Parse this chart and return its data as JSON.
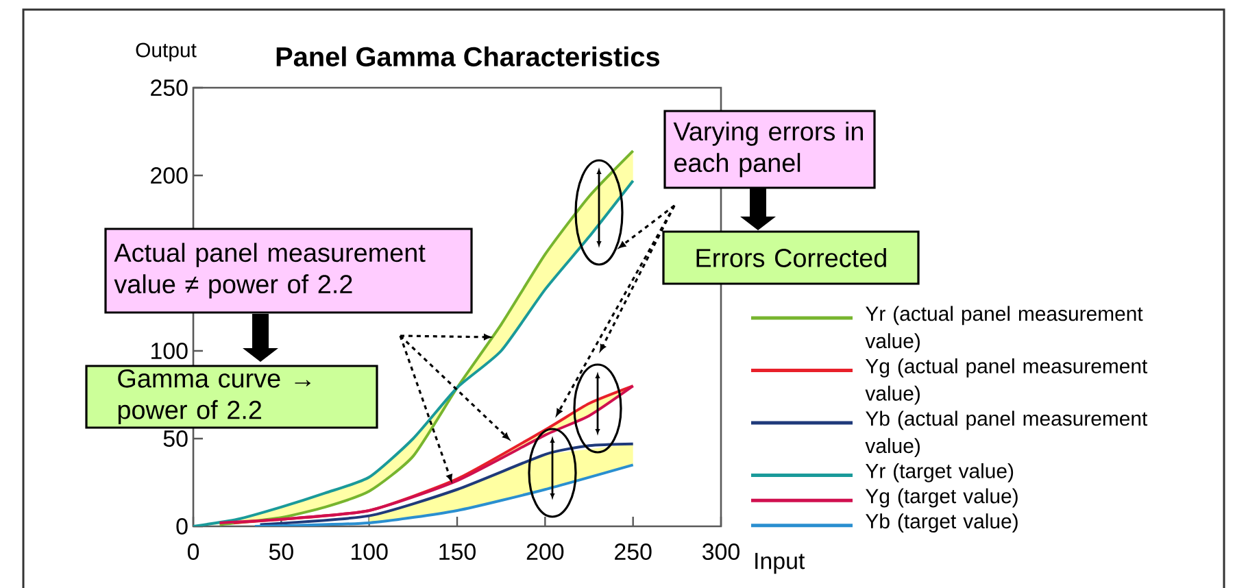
{
  "chart_data": {
    "type": "line",
    "title": "Panel Gamma Characteristics",
    "xlabel": "Input",
    "ylabel": "Output",
    "xlim": [
      0,
      300
    ],
    "ylim": [
      0,
      250
    ],
    "xticks": [
      0,
      50,
      100,
      150,
      200,
      250,
      300
    ],
    "yticks": [
      0,
      50,
      100,
      200,
      250
    ],
    "grid": false,
    "legend": "right",
    "marker": "none",
    "line_style": "solid",
    "series": [
      {
        "name": "Yr (actual panel measurement value)",
        "color": "#77b52e",
        "x": [
          15,
          25,
          50,
          75,
          100,
          125,
          150,
          175,
          200,
          225,
          250
        ],
        "values": [
          1,
          2,
          5,
          11,
          20,
          40,
          79,
          115,
          155,
          188,
          214
        ]
      },
      {
        "name": "Yg (actual panel measurement value)",
        "color": "#e8202a",
        "x": [
          23,
          50,
          100,
          150,
          200,
          225,
          250
        ],
        "values": [
          2,
          4,
          9,
          27,
          55,
          70,
          80
        ]
      },
      {
        "name": "Yb (actual panel measurement value)",
        "color": "#1f3a7a",
        "x": [
          38,
          100,
          150,
          200,
          225,
          250
        ],
        "values": [
          1,
          6,
          21,
          41,
          46,
          47
        ]
      },
      {
        "name": "Yr (target value)",
        "color": "#1a9a9a",
        "x": [
          0,
          25,
          50,
          75,
          100,
          125,
          150,
          175,
          200,
          225,
          250
        ],
        "values": [
          0,
          4,
          11,
          19,
          28,
          50,
          79,
          100,
          135,
          165,
          197
        ],
        "lower": [
          0,
          2,
          5,
          11,
          20,
          40,
          79,
          100,
          135,
          165,
          197
        ],
        "upper": [
          0,
          4,
          11,
          19,
          28,
          50,
          79,
          115,
          155,
          188,
          214
        ]
      },
      {
        "name": "Yg (target value)",
        "color": "#d0104f",
        "x": [
          15,
          50,
          100,
          150,
          200,
          225,
          250
        ],
        "values": [
          2,
          4,
          9,
          26,
          52,
          63,
          80
        ],
        "lower": [
          null,
          null,
          null,
          26,
          52,
          63,
          80
        ],
        "upper": [
          null,
          null,
          null,
          27,
          55,
          70,
          80
        ]
      },
      {
        "name": "Yb (target value)",
        "color": "#2a8fd0",
        "x": [
          35,
          100,
          150,
          200,
          250
        ],
        "values": [
          0,
          2,
          9,
          21,
          35
        ],
        "lower": [
          null,
          2,
          9,
          21,
          35
        ],
        "upper": [
          null,
          6,
          21,
          41,
          47
        ]
      }
    ],
    "annotations": [
      "Actual panel measurement value ≠ power of 2.2",
      "Gamma curve → power of 2.2",
      "Varying errors in each panel",
      "Errors Corrected"
    ]
  }
}
